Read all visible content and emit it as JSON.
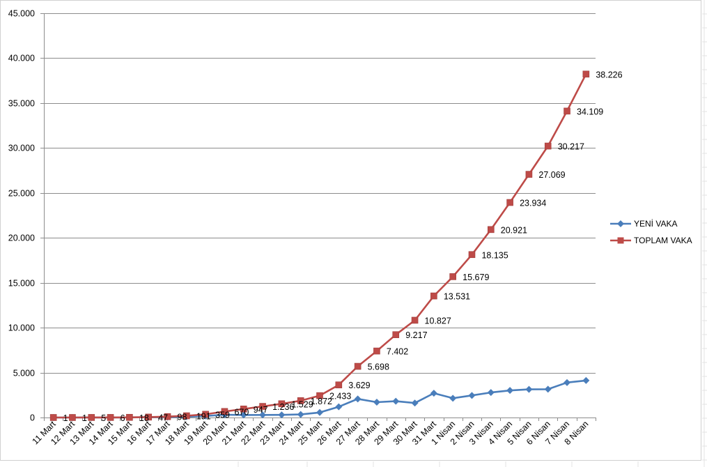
{
  "chart_data": {
    "type": "line",
    "categories": [
      "11 Mart",
      "12 Mart",
      "13 Mart",
      "14 Mart",
      "15 Mart",
      "16 Mart",
      "17 Mart",
      "18 Mart",
      "19 Mart",
      "20 Mart",
      "21 Mart",
      "22 Mart",
      "23 Mart",
      "24 Mart",
      "25 Mart",
      "26 Mart",
      "27 Mart",
      "28 Mart",
      "29 Mart",
      "30 Mart",
      "31 Mart",
      "1 Nisan",
      "2 Nisan",
      "3 Nisan",
      "4 Nisan",
      "5 Nisan",
      "6 Nisan",
      "7 Nisan",
      "8 Nisan"
    ],
    "ylim": [
      0,
      45000
    ],
    "yticks": [
      0,
      5000,
      10000,
      15000,
      20000,
      25000,
      30000,
      35000,
      40000,
      45000
    ],
    "ytick_labels": [
      "0",
      "5.000",
      "10.000",
      "15.000",
      "20.000",
      "25.000",
      "30.000",
      "35.000",
      "40.000",
      "45.000"
    ],
    "grid": true,
    "legend_position": "right",
    "series": [
      {
        "name": "YENİ VAKA",
        "color": "#4A7EBB",
        "marker": "diamond",
        "values": [
          1,
          0,
          4,
          1,
          12,
          29,
          51,
          93,
          168,
          311,
          277,
          289,
          293,
          343,
          561,
          1196,
          2069,
          1704,
          1815,
          1610,
          2704,
          2148,
          2456,
          2786,
          3013,
          3135,
          3148,
          3892,
          4117
        ]
      },
      {
        "name": "TOPLAM VAKA",
        "color": "#BE4B48",
        "marker": "square",
        "values": [
          1,
          1,
          5,
          6,
          18,
          47,
          98,
          191,
          359,
          670,
          947,
          1236,
          1529,
          1872,
          2433,
          3629,
          5698,
          7402,
          9217,
          10827,
          13531,
          15679,
          18135,
          20921,
          23934,
          27069,
          30217,
          34109,
          38226
        ],
        "data_labels": [
          "1",
          "1",
          "5",
          "6",
          "18",
          "47",
          "98",
          "191",
          "359",
          "670",
          "947",
          "1.236",
          "1.529",
          "1.872",
          "2.433",
          "3.629",
          "5.698",
          "7.402",
          "9.217",
          "10.827",
          "13.531",
          "15.679",
          "18.135",
          "20.921",
          "23.934",
          "27.069",
          "30.217",
          "34.109",
          "38.226"
        ]
      }
    ]
  }
}
